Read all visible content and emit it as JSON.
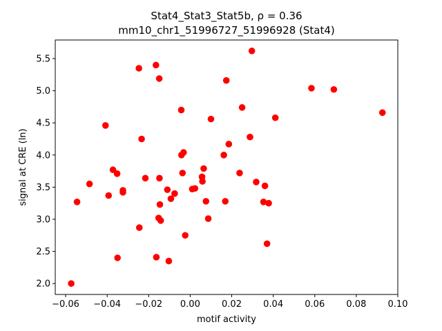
{
  "chart_data": {
    "type": "scatter",
    "title_line1": "Stat4_Stat3_Stat5b, ρ = 0.36",
    "title_line2": "mm10_chr1_51996727_51996928 (Stat4)",
    "xlabel": "motif activity",
    "ylabel": "signal at CRE (ln)",
    "xlim": [
      -0.065,
      0.1
    ],
    "ylim": [
      1.83,
      5.79
    ],
    "xticks": [
      -0.06,
      -0.04,
      -0.02,
      0.0,
      0.02,
      0.04,
      0.06,
      0.08,
      0.1
    ],
    "xtick_labels": [
      "−0.06",
      "−0.04",
      "−0.02",
      "0.00",
      "0.02",
      "0.04",
      "0.06",
      "0.08",
      "0.10"
    ],
    "yticks": [
      2.0,
      2.5,
      3.0,
      3.5,
      4.0,
      4.5,
      5.0,
      5.5
    ],
    "ytick_labels": [
      "2.0",
      "2.5",
      "3.0",
      "3.5",
      "4.0",
      "4.5",
      "5.0",
      "5.5"
    ],
    "marker_color": "#ff0000",
    "points": [
      {
        "x": -0.0573,
        "y": 2.0
      },
      {
        "x": -0.0545,
        "y": 3.27
      },
      {
        "x": -0.0485,
        "y": 3.55
      },
      {
        "x": -0.0408,
        "y": 4.46
      },
      {
        "x": -0.0393,
        "y": 3.37
      },
      {
        "x": -0.0372,
        "y": 3.77
      },
      {
        "x": -0.0352,
        "y": 3.71
      },
      {
        "x": -0.035,
        "y": 2.4
      },
      {
        "x": -0.0324,
        "y": 3.45
      },
      {
        "x": -0.0324,
        "y": 3.42
      },
      {
        "x": -0.0247,
        "y": 5.35
      },
      {
        "x": -0.0245,
        "y": 2.87
      },
      {
        "x": -0.0234,
        "y": 4.25
      },
      {
        "x": -0.0216,
        "y": 3.64
      },
      {
        "x": -0.0165,
        "y": 5.4
      },
      {
        "x": -0.0163,
        "y": 2.41
      },
      {
        "x": -0.0152,
        "y": 3.02
      },
      {
        "x": -0.0149,
        "y": 5.19
      },
      {
        "x": -0.0148,
        "y": 3.64
      },
      {
        "x": -0.0146,
        "y": 3.23
      },
      {
        "x": -0.0142,
        "y": 2.98
      },
      {
        "x": -0.011,
        "y": 3.46
      },
      {
        "x": -0.0103,
        "y": 2.35
      },
      {
        "x": -0.0093,
        "y": 3.32
      },
      {
        "x": -0.0075,
        "y": 3.4
      },
      {
        "x": -0.0043,
        "y": 4.7
      },
      {
        "x": -0.0042,
        "y": 4.0
      },
      {
        "x": -0.0037,
        "y": 3.72
      },
      {
        "x": -0.0032,
        "y": 4.04
      },
      {
        "x": -0.0024,
        "y": 2.75
      },
      {
        "x": 0.001,
        "y": 3.47
      },
      {
        "x": 0.0023,
        "y": 3.48
      },
      {
        "x": 0.0057,
        "y": 3.66
      },
      {
        "x": 0.0059,
        "y": 3.59
      },
      {
        "x": 0.0065,
        "y": 3.79
      },
      {
        "x": 0.0076,
        "y": 3.28
      },
      {
        "x": 0.0087,
        "y": 3.01
      },
      {
        "x": 0.01,
        "y": 4.56
      },
      {
        "x": 0.0162,
        "y": 4.0
      },
      {
        "x": 0.0169,
        "y": 3.28
      },
      {
        "x": 0.0174,
        "y": 5.16
      },
      {
        "x": 0.0186,
        "y": 4.17
      },
      {
        "x": 0.0238,
        "y": 3.72
      },
      {
        "x": 0.025,
        "y": 4.74
      },
      {
        "x": 0.0288,
        "y": 4.28
      },
      {
        "x": 0.0297,
        "y": 5.62
      },
      {
        "x": 0.0318,
        "y": 3.58
      },
      {
        "x": 0.0353,
        "y": 3.27
      },
      {
        "x": 0.036,
        "y": 3.52
      },
      {
        "x": 0.037,
        "y": 2.62
      },
      {
        "x": 0.0378,
        "y": 3.25
      },
      {
        "x": 0.041,
        "y": 4.58
      },
      {
        "x": 0.0584,
        "y": 5.04
      },
      {
        "x": 0.0692,
        "y": 5.02
      },
      {
        "x": 0.0926,
        "y": 4.66
      }
    ]
  }
}
